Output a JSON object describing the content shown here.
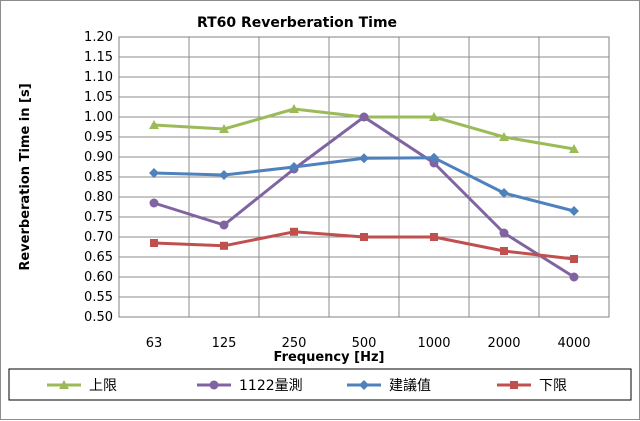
{
  "chart_data": {
    "type": "line",
    "title": "RT60 Reverberation Time",
    "xlabel": "Frequency [Hz]",
    "ylabel": "Reverberation Time in [s]",
    "categories": [
      "63",
      "125",
      "250",
      "500",
      "1000",
      "2000",
      "4000"
    ],
    "ylim": [
      0.5,
      1.2
    ],
    "yticks": [
      "0.50",
      "0.55",
      "0.60",
      "0.65",
      "0.70",
      "0.75",
      "0.80",
      "0.85",
      "0.90",
      "0.95",
      "1.00",
      "1.05",
      "1.10",
      "1.15",
      "1.20"
    ],
    "grid": true,
    "legend_position": "bottom",
    "series": [
      {
        "name": "上限",
        "color": "#9bbb59",
        "marker": "triangle",
        "values": [
          0.98,
          0.97,
          1.02,
          1.0,
          1.0,
          0.95,
          0.92
        ]
      },
      {
        "name": "1122量測",
        "color": "#8064a2",
        "marker": "circle",
        "values": [
          0.785,
          0.73,
          0.87,
          1.0,
          0.885,
          0.71,
          0.6
        ]
      },
      {
        "name": "建議值",
        "color": "#4f81bd",
        "marker": "diamond",
        "values": [
          0.86,
          0.855,
          0.875,
          0.897,
          0.898,
          0.81,
          0.765
        ]
      },
      {
        "name": "下限",
        "color": "#c0504d",
        "marker": "square",
        "values": [
          0.685,
          0.678,
          0.713,
          0.7,
          0.7,
          0.665,
          0.645
        ]
      }
    ]
  }
}
